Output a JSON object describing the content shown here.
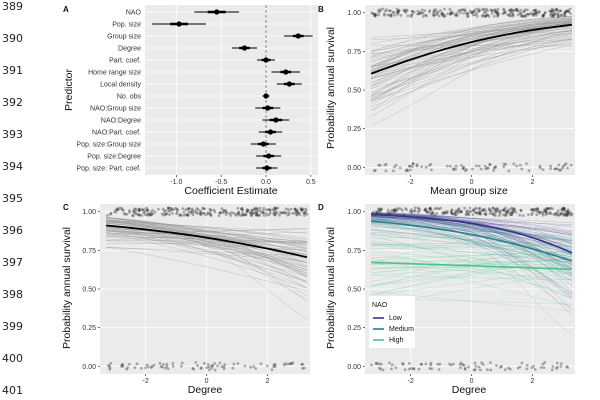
{
  "line_numbers": [
    "389",
    "390",
    "391",
    "392",
    "393",
    "394",
    "395",
    "396",
    "397",
    "398",
    "399",
    "400",
    "401"
  ],
  "colors": {
    "panel_bg": "#ebebeb",
    "grid": "#ffffff",
    "text": "#111111",
    "mean_line": "#000000",
    "draw_line": "#999999",
    "points": "#222222",
    "zero_line": "#888888",
    "nao_low": "#3b2f8f",
    "nao_medium": "#2a7d8c",
    "nao_high": "#4cc28a"
  },
  "chart_data": [
    {
      "panel": "A",
      "type": "forest",
      "xlabel": "Coefficient Estimate",
      "ylabel": "Predictor",
      "xlim": [
        -1.35,
        0.58
      ],
      "xticks": [
        -1.0,
        -0.5,
        0.0,
        0.5
      ],
      "xtick_labels": [
        "-1.0",
        "-0.5",
        "0.0",
        "0.5"
      ],
      "reference_line": 0,
      "predictors": [
        "NAO",
        "Pop. size",
        "Group size",
        "Degree",
        "Part. coef.",
        "Home range size",
        "Local density",
        "No. obs",
        "NAO:Group size",
        "NAO:Degree",
        "NAO:Part. coef.",
        "Pop. size:Group size",
        "Pop. size:Degree",
        "Pop. size: Part. coef."
      ],
      "estimates": [
        -0.55,
        -0.97,
        0.36,
        -0.24,
        0.0,
        0.22,
        0.26,
        0.0,
        0.02,
        0.11,
        0.05,
        -0.03,
        0.03,
        0.01
      ],
      "ci_inner": [
        [
          -0.65,
          -0.45
        ],
        [
          -1.07,
          -0.87
        ],
        [
          0.3,
          0.42
        ],
        [
          -0.3,
          -0.18
        ],
        [
          -0.05,
          0.05
        ],
        [
          0.16,
          0.28
        ],
        [
          0.2,
          0.32
        ],
        [
          -0.02,
          0.02
        ],
        [
          -0.04,
          0.08
        ],
        [
          0.04,
          0.18
        ],
        [
          -0.01,
          0.11
        ],
        [
          -0.09,
          0.03
        ],
        [
          -0.03,
          0.09
        ],
        [
          -0.04,
          0.06
        ]
      ],
      "ci_outer": [
        [
          -0.8,
          -0.3
        ],
        [
          -1.27,
          -0.67
        ],
        [
          0.2,
          0.52
        ],
        [
          -0.38,
          -0.1
        ],
        [
          -0.1,
          0.1
        ],
        [
          0.06,
          0.38
        ],
        [
          0.12,
          0.4
        ],
        [
          -0.04,
          0.04
        ],
        [
          -0.12,
          0.16
        ],
        [
          -0.04,
          0.26
        ],
        [
          -0.08,
          0.18
        ],
        [
          -0.17,
          0.11
        ],
        [
          -0.11,
          0.17
        ],
        [
          -0.11,
          0.13
        ]
      ]
    },
    {
      "panel": "B",
      "type": "line",
      "xlabel": "Mean group size",
      "ylabel": "Probability annual survival",
      "xlim": [
        -3.5,
        3.4
      ],
      "ylim": [
        -0.05,
        1.05
      ],
      "xticks": [
        -2,
        0,
        2
      ],
      "xtick_labels": [
        "-2",
        "0",
        "2"
      ],
      "yticks": [
        0,
        0.25,
        0.5,
        0.75,
        1.0
      ],
      "ytick_labels": [
        "0.00",
        "0.25",
        "0.50",
        "0.75",
        "1.00"
      ],
      "mean_curve": {
        "x": [
          -3.3,
          3.3
        ],
        "intercept": 1.45,
        "slope": 0.31
      },
      "posterior_draws": 70,
      "observed_points": true
    },
    {
      "panel": "C",
      "type": "line",
      "xlabel": "Degree",
      "ylabel": "Probability annual survival",
      "xlim": [
        -3.5,
        3.4
      ],
      "ylim": [
        -0.05,
        1.05
      ],
      "xticks": [
        -2,
        0,
        2
      ],
      "xtick_labels": [
        "-2",
        "0",
        "2"
      ],
      "yticks": [
        0,
        0.25,
        0.5,
        0.75,
        1.0
      ],
      "ytick_labels": [
        "0.00",
        "0.25",
        "0.50",
        "0.75",
        "1.00"
      ],
      "mean_curve": {
        "x": [
          -3.3,
          3.3
        ],
        "intercept": 1.6,
        "slope": -0.22
      },
      "posterior_draws": 70,
      "observed_points": true
    },
    {
      "panel": "D",
      "type": "line",
      "xlabel": "Degree",
      "ylabel": "Probability annual survival",
      "xlim": [
        -3.5,
        3.4
      ],
      "ylim": [
        -0.05,
        1.05
      ],
      "xticks": [
        -2,
        0,
        2
      ],
      "xtick_labels": [
        "-2",
        "0",
        "2"
      ],
      "yticks": [
        0,
        0.25,
        0.5,
        0.75,
        1.0
      ],
      "ytick_labels": [
        "0.00",
        "0.25",
        "0.50",
        "0.75",
        "1.00"
      ],
      "legend": {
        "title": "NAO",
        "position": "bottom-left",
        "entries": [
          "Low",
          "Medium",
          "High"
        ]
      },
      "series": [
        {
          "name": "Low",
          "intercept": 2.5,
          "slope": -0.45
        },
        {
          "name": "Medium",
          "intercept": 1.75,
          "slope": -0.3
        },
        {
          "name": "High",
          "intercept": 0.62,
          "slope": -0.03
        }
      ],
      "posterior_draws": 40,
      "observed_points": true
    }
  ]
}
